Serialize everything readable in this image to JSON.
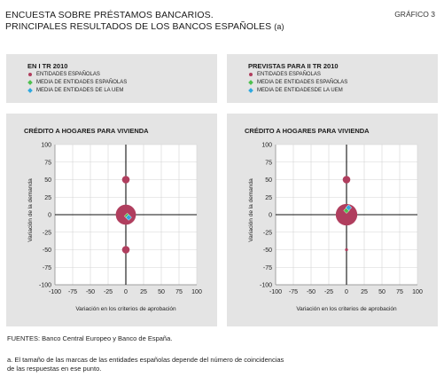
{
  "title": {
    "line1": "ENCUESTA SOBRE PRÉSTAMOS BANCARIOS.",
    "line2": "PRINCIPALES RESULTADOS DE LOS BANCOS ESPAÑOLES",
    "note_marker": "(a)"
  },
  "chart_number": "GRÁFICO 3",
  "legends": [
    {
      "title": "EN I TR 2010",
      "items": [
        {
          "label": "ENTIDADES ESPAÑOLAS",
          "symbol": "circle",
          "color": "#b03e5e"
        },
        {
          "label": "MEDIA DE ENTIDADES ESPAÑOLAS",
          "symbol": "diamond",
          "color": "#4fc04f"
        },
        {
          "label": "MEDIA DE ENTIDADES DE LA UEM",
          "symbol": "diamond",
          "color": "#2fa8e0"
        }
      ]
    },
    {
      "title": "PREVISTAS PARA II TR 2010",
      "items": [
        {
          "label": "ENTIDADES ESPAÑOLAS",
          "symbol": "circle",
          "color": "#b03e5e"
        },
        {
          "label": "MEDIA DE ENTIDADES ESPAÑOLAS",
          "symbol": "diamond",
          "color": "#4fc04f"
        },
        {
          "label": "MEDIA DE ENTIDADESDE LA UEM",
          "symbol": "diamond",
          "color": "#2fa8e0"
        }
      ]
    }
  ],
  "chart_data": [
    {
      "type": "scatter",
      "title": "CRÉDITO A HOGARES PARA VIVIENDA",
      "xlabel": "Variación en los criterios de aprobación",
      "ylabel": "Variación de la demanda",
      "xlim": [
        -100,
        100
      ],
      "ylim": [
        -100,
        100
      ],
      "xticks": [
        -100,
        -75,
        -50,
        -25,
        0,
        25,
        50,
        75,
        100
      ],
      "yticks": [
        100,
        75,
        50,
        25,
        0,
        -25,
        -50,
        -75,
        -100
      ],
      "bubbles": [
        {
          "x": 0,
          "y": 50,
          "size": 1,
          "color": "#b03e5e"
        },
        {
          "x": 0,
          "y": 0,
          "size": 7,
          "color": "#b03e5e"
        },
        {
          "x": 0,
          "y": -50,
          "size": 1,
          "color": "#b03e5e"
        }
      ],
      "means": [
        {
          "x": 2,
          "y": -2,
          "color": "#4fc04f"
        },
        {
          "x": 4,
          "y": -4,
          "color": "#2fa8e0"
        }
      ]
    },
    {
      "type": "scatter",
      "title": "CRÉDITO A HOGARES PARA VIVIENDA",
      "xlabel": "Variación en los criterios de aprobación",
      "ylabel": "Variación de la demanda",
      "xlim": [
        -100,
        100
      ],
      "ylim": [
        -100,
        100
      ],
      "xticks": [
        -100,
        -75,
        -50,
        -25,
        0,
        25,
        50,
        75,
        100
      ],
      "yticks": [
        100,
        75,
        50,
        25,
        0,
        -25,
        -50,
        -75,
        -100
      ],
      "bubbles": [
        {
          "x": 0,
          "y": 50,
          "size": 1,
          "color": "#b03e5e"
        },
        {
          "x": 0,
          "y": 0,
          "size": 8,
          "color": "#b03e5e"
        },
        {
          "x": 0,
          "y": -50,
          "size": 0.15,
          "color": "#b03e5e"
        }
      ],
      "means": [
        {
          "x": 0,
          "y": 6,
          "color": "#4fc04f"
        },
        {
          "x": 3,
          "y": 10,
          "color": "#2fa8e0"
        }
      ]
    }
  ],
  "footer": {
    "sources": "FUENTES: Banco Central Europeo y Banco de España.",
    "note_line1": "a. El tamaño de las marcas de las entidades españolas depende del número de coincidencias",
    "note_line2": "de las respuestas en ese punto."
  }
}
